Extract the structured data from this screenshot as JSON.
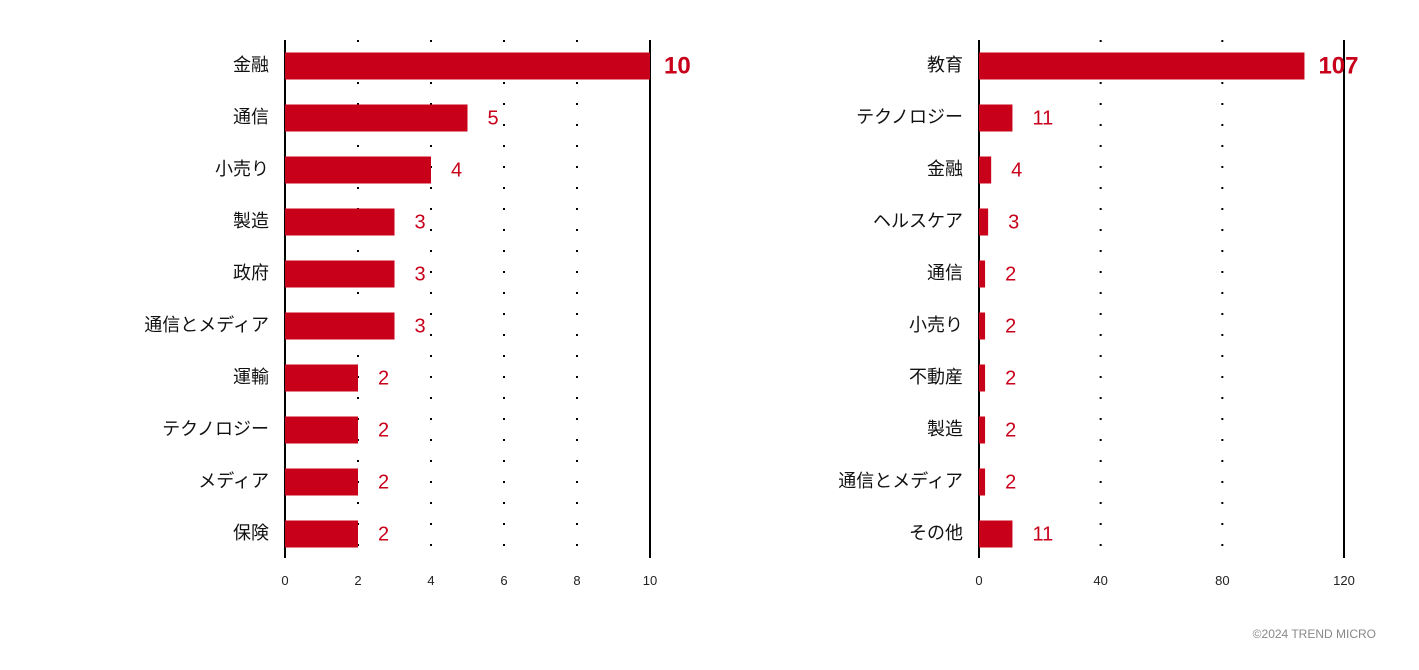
{
  "chart_data": [
    {
      "type": "bar",
      "orientation": "horizontal",
      "categories": [
        "金融",
        "通信",
        "小売り",
        "製造",
        "政府",
        "通信とメディア",
        "運輸",
        "テクノロジー",
        "メディア",
        "保険"
      ],
      "values": [
        10,
        5,
        4,
        3,
        3,
        3,
        2,
        2,
        2,
        2
      ],
      "xlim": [
        0,
        10
      ],
      "xticks": [
        0,
        2,
        4,
        6,
        8,
        10
      ],
      "grid": "dotted",
      "bar_color": "#c8001a"
    },
    {
      "type": "bar",
      "orientation": "horizontal",
      "categories": [
        "教育",
        "テクノロジー",
        "金融",
        "ヘルスケア",
        "通信",
        "小売り",
        "不動産",
        "製造",
        "通信とメディア",
        "その他"
      ],
      "values": [
        107,
        11,
        4,
        3,
        2,
        2,
        2,
        2,
        2,
        11
      ],
      "xlim": [
        0,
        120
      ],
      "xticks": [
        0,
        40,
        80,
        120
      ],
      "grid": "dotted",
      "bar_color": "#c8001a"
    }
  ],
  "footer": {
    "copyright": "©2024 TREND MICRO"
  }
}
